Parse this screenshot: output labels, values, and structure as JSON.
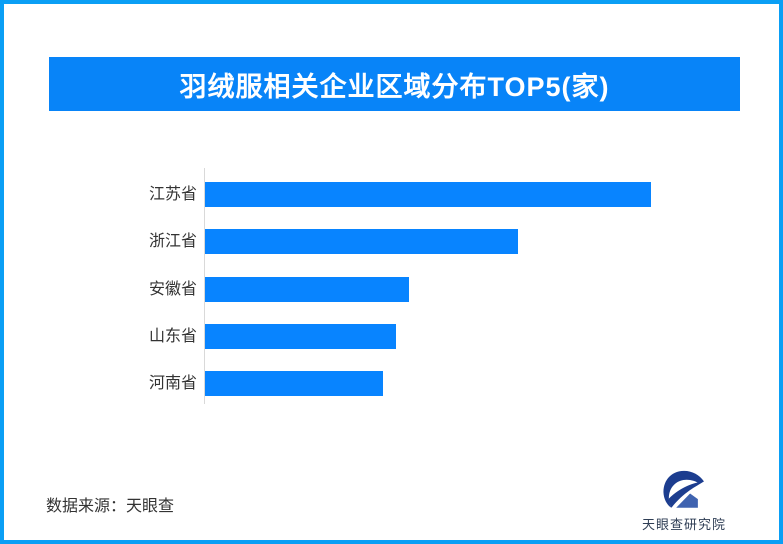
{
  "page": {
    "border_color": "#0a9ff5",
    "background_color": "#ffffff"
  },
  "header": {
    "title": "羽绒服相关企业区域分布TOP5(家)",
    "bg_color": "#0884f8",
    "text_color": "#ffffff"
  },
  "chart_data": {
    "type": "bar",
    "orientation": "horizontal",
    "title": "羽绒服相关企业区域分布TOP5(家)",
    "categories": [
      "江苏省",
      "浙江省",
      "安徽省",
      "山东省",
      "河南省"
    ],
    "values": [
      446,
      313,
      204,
      191,
      178
    ],
    "value_note": "bars carry no numeric labels in the image; values are relative bar lengths measured in pixels",
    "xlabel": "",
    "ylabel": "",
    "xlim": [
      0,
      480
    ],
    "grid": false,
    "legend": false,
    "bar_color": "#0884ff",
    "axis_color": "#d9d9d9",
    "label_color": "#333333"
  },
  "footer": {
    "source_label": "数据来源：天眼查",
    "logo": {
      "text": "天眼查研究院",
      "emblem_dark_color": "#1c3d8f",
      "emblem_light_color": "#3f63b0"
    }
  }
}
